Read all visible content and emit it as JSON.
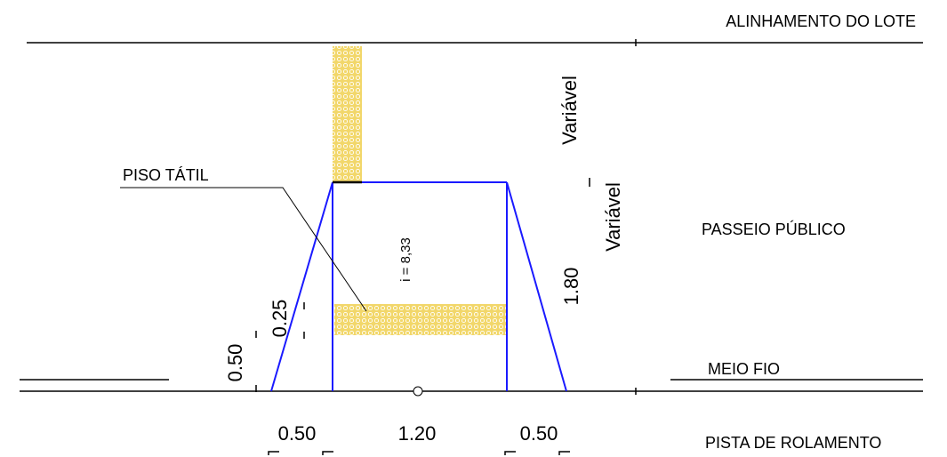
{
  "labels": {
    "lot_alignment": "ALINHAMENTO DO LOTE",
    "sidewalk": "PASSEIO PÚBLICO",
    "curb": "MEIO FIO",
    "roadway": "PISTA DE ROLAMENTO",
    "tactile_floor": "PISO TÁTIL"
  },
  "dimensions": {
    "left_flare_width": "0.50",
    "ramp_width": "1.20",
    "right_flare_width": "0.50",
    "curb_height": "0.50",
    "tactile_depth": "0.25",
    "ramp_length": "1.80",
    "variable_top": "Variável",
    "variable_mid": "Variável",
    "slope": "i = 8,33"
  },
  "colors": {
    "ramp_outline": "#1a1aff",
    "tactile_fill": "#f2d76a",
    "tactile_dot": "#ffffff",
    "line": "#000000"
  }
}
